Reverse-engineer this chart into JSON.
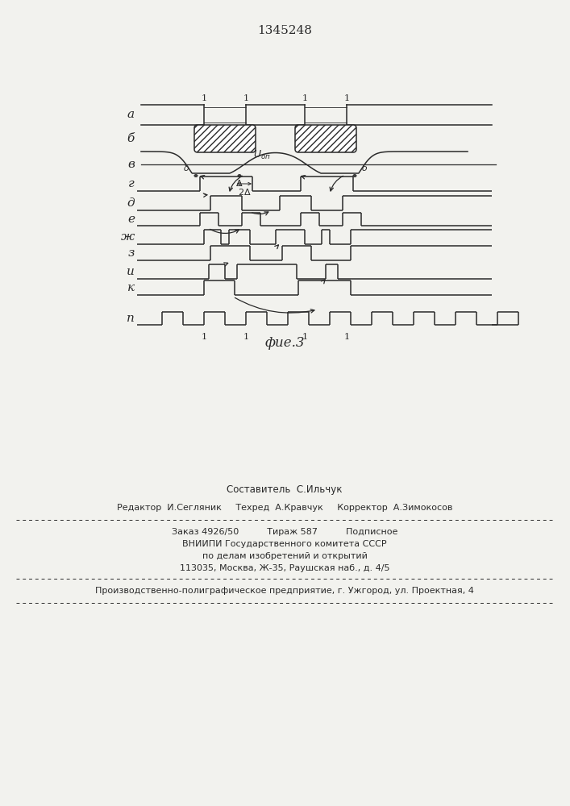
{
  "patent_number": "1345248",
  "fig_label": "фие.3",
  "row_labels": [
    "а",
    "б",
    "в",
    "г",
    "д",
    "е",
    "ж",
    "з",
    "и",
    "к",
    "п"
  ],
  "footer": {
    "line1": "Составитель  С.Ильчук",
    "line2": "Редактор  И.Сегляник     Техред  А.Кравчук     Корректор  А.Зимокосов",
    "line3": "Заказ 4926/50          Тираж 587          Подписное",
    "line4": "ВНИИПИ Государственного комитета СССР",
    "line5": "по делам изобретений и открытий",
    "line6": "113035, Москва, Ж-35, Раушская наб., д. 4/5",
    "line7": "Производственно-полиграфическое предприятие, г. Ужгород, ул. Проектная, 4"
  },
  "bg_color": "#f2f2ee",
  "line_color": "#2a2a2a"
}
